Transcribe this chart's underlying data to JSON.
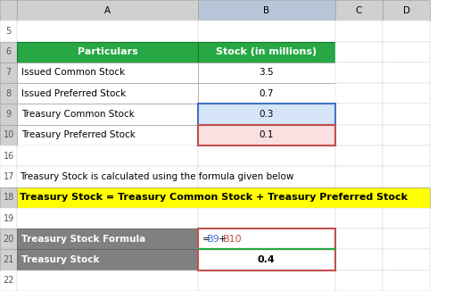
{
  "col_headers": [
    "",
    "A",
    "B",
    "C",
    "D"
  ],
  "row_numbers": [
    "5",
    "6",
    "7",
    "8",
    "9",
    "10",
    "16",
    "17",
    "18",
    "19",
    "20",
    "21",
    "22"
  ],
  "table_header_bg": "#27A844",
  "table_header_text": "#FFFFFF",
  "table_header_labels": [
    "Particulars",
    "Stock (in millions)"
  ],
  "data_rows": [
    {
      "label": "Issued Common Stock",
      "value": "3.5",
      "bg_A": "#FFFFFF",
      "bg_B": "#FFFFFF"
    },
    {
      "label": "Issued Preferred Stock",
      "value": "0.7",
      "bg_A": "#FFFFFF",
      "bg_B": "#FFFFFF"
    },
    {
      "label": "Treasury Common Stock",
      "value": "0.3",
      "bg_A": "#FFFFFF",
      "bg_B": "#D6E4F7"
    },
    {
      "label": "Treasury Preferred Stock",
      "value": "0.1",
      "bg_A": "#FFFFFF",
      "bg_B": "#FAE0E0"
    }
  ],
  "formula_text": "Treasury Stock is calculated using the formula given below",
  "highlight_formula": "Treasury Stock = Treasury Common Stock + Treasury Preferred Stock",
  "highlight_bg": "#FFFF00",
  "highlight_text_color": "#000000",
  "formula_row_label": "Treasury Stock Formula",
  "formula_row_value": "=B9+B10",
  "result_row_label": "Treasury Stock",
  "result_row_value": "0.4",
  "dark_row_bg": "#808080",
  "dark_row_text": "#FFFFFF",
  "grid_color": "#A0A0A0",
  "col_header_bg": "#D0D0D0",
  "col_header_active_bg": "#AAAACC",
  "background": "#FFFFFF",
  "blue_border_color": "#4472C4",
  "red_border_color": "#C0504D",
  "green_border_color": "#27A844"
}
